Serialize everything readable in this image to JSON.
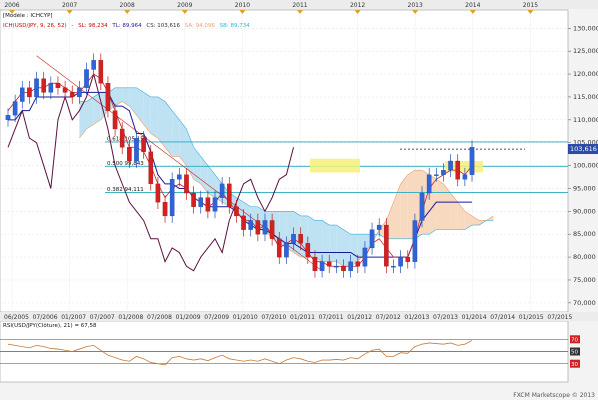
{
  "header": {
    "module_label": "[Modèle : ICHCYP]",
    "legend": [
      {
        "text": "ICH(USD/JPY, 9, 26, 52)",
        "color": "#cc0000"
      },
      {
        "text": "-",
        "color": "#333333"
      },
      {
        "text": "SL: 98,234",
        "color": "#cc0000"
      },
      {
        "text": "TL: 89,964",
        "color": "#1a1a99"
      },
      {
        "text": "CS: 103,616",
        "color": "#333333"
      },
      {
        "text": "SA: 94,096",
        "color": "#e8a070"
      },
      {
        "text": "SB: 89,734",
        "color": "#3aaed8"
      }
    ]
  },
  "rsi_legend": "RSI(USD/JPY(Clôture), 21) = 67,58",
  "footer": "FXCM Marketscope © 2013",
  "last_price_tag": "103,616",
  "chart_data": [
    {
      "type": "candlestick",
      "series_name": "USD/JPY",
      "x_top_labels": [
        "2006",
        "2007",
        "2008",
        "2009",
        "2010",
        "2011",
        "2012",
        "2013",
        "2014",
        "2015"
      ],
      "x_bottom_labels": [
        "06/2005",
        "07/2006",
        "01/2007",
        "07/2007",
        "01/2008",
        "07/2008",
        "01/2009",
        "07/2009",
        "01/2010",
        "07/2010",
        "01/2011",
        "07/2011",
        "01/2012",
        "07/2012",
        "01/2013",
        "07/2013",
        "01/2014",
        "07/2014",
        "01/2015",
        "07/2015"
      ],
      "ylim": [
        68,
        134
      ],
      "y_ticks": [
        70,
        75,
        80,
        85,
        90,
        95,
        100,
        105,
        110,
        115,
        120,
        125,
        130
      ],
      "y_tick_labels": [
        "70,000",
        "75,000",
        "80,000",
        "85,000",
        "90,000",
        "95,000",
        "100,000",
        "105,000",
        "110,000",
        "115,000",
        "120,000",
        "125,000",
        "130,000"
      ],
      "fib_levels": [
        {
          "ratio": "0.618",
          "price": 105.159,
          "label": "0.618 105,159"
        },
        {
          "ratio": "0.500",
          "price": 99.843,
          "label": "0.500 99,843"
        },
        {
          "ratio": "0.382",
          "price": 94.111,
          "label": "0.382 94,111"
        }
      ],
      "last_price": 103.616,
      "closes": [
        111,
        114,
        117,
        115,
        119,
        116,
        118,
        117,
        116,
        115,
        117,
        121,
        123,
        118,
        112,
        108,
        104,
        101,
        106,
        103,
        96,
        92,
        89,
        97,
        98,
        94,
        91,
        93,
        90,
        93,
        96,
        91,
        89,
        86,
        88,
        85,
        88,
        84,
        80,
        83,
        85,
        83,
        80,
        77,
        79,
        78,
        78,
        77,
        79,
        78,
        82,
        86,
        87,
        78,
        78,
        80,
        79,
        88,
        94,
        98,
        98,
        99,
        101,
        97,
        98,
        104
      ],
      "tenkan": [
        112,
        114,
        116,
        116,
        117,
        117,
        118,
        118,
        117,
        116,
        116,
        118,
        120,
        119,
        116,
        112,
        108,
        104,
        104,
        103,
        100,
        96,
        93,
        95,
        96,
        95,
        93,
        92,
        91,
        92,
        94,
        92,
        90,
        88,
        88,
        86,
        87,
        85,
        82,
        83,
        84,
        83,
        81,
        79,
        79,
        78,
        78,
        78,
        78,
        78,
        80,
        83,
        84,
        82,
        80,
        80,
        80,
        84,
        90,
        95,
        97,
        98,
        99,
        99,
        98,
        100
      ],
      "kijun": [
        110,
        110,
        112,
        112,
        115,
        115,
        115,
        115,
        115,
        115,
        116,
        116,
        116,
        116,
        116,
        113,
        113,
        112,
        107,
        107,
        103,
        98,
        96,
        96,
        95,
        95,
        93,
        92,
        91,
        91,
        91,
        91,
        90,
        88,
        87,
        86,
        86,
        85,
        84,
        83,
        83,
        82,
        81,
        81,
        81,
        81,
        81,
        81,
        81,
        80,
        80,
        80,
        80,
        80,
        80,
        80,
        80,
        84,
        88,
        90,
        92,
        92,
        92,
        92,
        92,
        92
      ],
      "chikou": [
        104,
        108,
        112,
        106,
        105,
        100,
        95,
        110,
        115,
        110,
        112,
        115,
        120,
        114,
        108,
        100,
        96,
        92,
        90,
        88,
        84,
        84,
        79,
        82,
        81,
        78,
        77,
        80,
        82,
        84,
        81,
        88,
        92,
        96,
        97,
        93,
        90,
        93,
        97,
        98,
        104
      ],
      "span_a_price": [
        106,
        108,
        109,
        110,
        112,
        113,
        114,
        113,
        111,
        109,
        107,
        106,
        104,
        102,
        102,
        100,
        97,
        96,
        94,
        93,
        92,
        91,
        90,
        88,
        87,
        86,
        86,
        84,
        83,
        82,
        81,
        80,
        80,
        80,
        79,
        79,
        79,
        78,
        78,
        79,
        81,
        83,
        86,
        88,
        92,
        96,
        98,
        99,
        99,
        98,
        97,
        96,
        94,
        92,
        90,
        89,
        88,
        88,
        89
      ],
      "span_b_price": [
        114,
        114,
        115,
        116,
        116,
        117,
        117,
        117,
        117,
        116,
        115,
        115,
        114,
        112,
        110,
        108,
        104,
        102,
        100,
        98,
        96,
        94,
        93,
        92,
        91,
        91,
        90,
        90,
        90,
        90,
        90,
        89,
        89,
        88,
        88,
        87,
        87,
        86,
        85,
        85,
        85,
        85,
        85,
        84,
        84,
        84,
        84,
        84,
        85,
        85,
        86,
        86,
        86,
        86,
        86,
        87,
        87,
        88,
        88
      ]
    },
    {
      "type": "line",
      "series_name": "RSI(USD/JPY(Clôture), 21)",
      "ylim": [
        0,
        100
      ],
      "levels": [
        30,
        50,
        70
      ],
      "level_labels": [
        "30",
        "50",
        "70"
      ],
      "values": [
        62,
        60,
        58,
        56,
        60,
        58,
        55,
        54,
        52,
        50,
        54,
        58,
        60,
        52,
        44,
        40,
        36,
        34,
        42,
        38,
        32,
        30,
        28,
        40,
        42,
        38,
        36,
        38,
        35,
        40,
        44,
        38,
        36,
        34,
        36,
        34,
        38,
        34,
        30,
        36,
        40,
        38,
        34,
        32,
        36,
        36,
        37,
        36,
        40,
        38,
        46,
        52,
        54,
        42,
        42,
        48,
        47,
        58,
        62,
        64,
        63,
        62,
        64,
        60,
        62,
        68
      ]
    }
  ]
}
